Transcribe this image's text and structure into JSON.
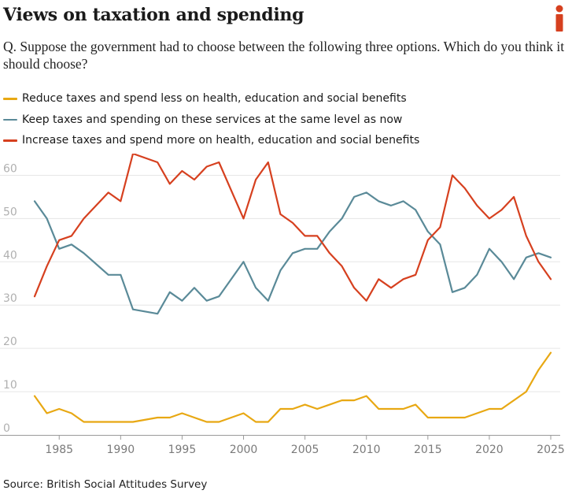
{
  "header": {
    "title": "Views on taxation and spending",
    "subtitle": "Q. Suppose the government had to choose between the following three options. Which do you think it should choose?"
  },
  "footer": {
    "source": "Source: British Social Attitudes Survey"
  },
  "colors": {
    "reduce": "#e8a813",
    "keep": "#5a8a98",
    "increase": "#d6401f",
    "grid": "#e6e6e6",
    "axis": "#9a9a9a",
    "tick_label": "#7a7a7a",
    "brand": "#d6401f"
  },
  "logo_icon": "i-brand-logo",
  "chart_data": {
    "type": "line",
    "title": "Views on taxation and spending",
    "xlabel": "",
    "ylabel": "",
    "xlim": [
      1983,
      2025
    ],
    "ylim": [
      0,
      65
    ],
    "x_ticks": [
      1985,
      1990,
      1995,
      2000,
      2005,
      2010,
      2015,
      2020,
      2025
    ],
    "y_ticks": [
      0,
      10,
      20,
      30,
      40,
      50,
      60
    ],
    "grid": true,
    "legend_position": "top-left",
    "series": [
      {
        "key": "reduce",
        "name": "Reduce taxes and spend less on health, education and social benefits",
        "x": [
          1983,
          1984,
          1985,
          1986,
          1987,
          1989,
          1990,
          1991,
          1993,
          1994,
          1995,
          1996,
          1997,
          1998,
          2000,
          2001,
          2002,
          2003,
          2004,
          2005,
          2006,
          2007,
          2008,
          2009,
          2010,
          2011,
          2012,
          2013,
          2014,
          2015,
          2016,
          2017,
          2018,
          2019,
          2020,
          2021,
          2022,
          2023,
          2024,
          2025
        ],
        "values": [
          9,
          5,
          6,
          5,
          3,
          3,
          3,
          3,
          4,
          4,
          5,
          4,
          3,
          3,
          5,
          3,
          3,
          6,
          6,
          7,
          6,
          7,
          8,
          8,
          9,
          6,
          6,
          6,
          7,
          4,
          4,
          4,
          4,
          5,
          6,
          6,
          8,
          10,
          15,
          19
        ]
      },
      {
        "key": "keep",
        "name": "Keep taxes and spending on these services at the same level as now",
        "x": [
          1983,
          1984,
          1985,
          1986,
          1987,
          1989,
          1990,
          1991,
          1993,
          1994,
          1995,
          1996,
          1997,
          1998,
          2000,
          2001,
          2002,
          2003,
          2004,
          2005,
          2006,
          2007,
          2008,
          2009,
          2010,
          2011,
          2012,
          2013,
          2014,
          2015,
          2016,
          2017,
          2018,
          2019,
          2020,
          2021,
          2022,
          2023,
          2024,
          2025
        ],
        "values": [
          54,
          50,
          43,
          44,
          42,
          37,
          37,
          29,
          28,
          33,
          31,
          34,
          31,
          32,
          40,
          34,
          31,
          38,
          42,
          43,
          43,
          47,
          50,
          55,
          56,
          54,
          53,
          54,
          52,
          47,
          44,
          33,
          34,
          37,
          43,
          40,
          36,
          41,
          42,
          41
        ]
      },
      {
        "key": "increase",
        "name": "Increase taxes and spend more on health, education and social benefits",
        "x": [
          1983,
          1984,
          1985,
          1986,
          1987,
          1989,
          1990,
          1991,
          1993,
          1994,
          1995,
          1996,
          1997,
          1998,
          2000,
          2001,
          2002,
          2003,
          2004,
          2005,
          2006,
          2007,
          2008,
          2009,
          2010,
          2011,
          2012,
          2013,
          2014,
          2015,
          2016,
          2017,
          2018,
          2019,
          2020,
          2021,
          2022,
          2023,
          2024,
          2025
        ],
        "values": [
          32,
          39,
          45,
          46,
          50,
          56,
          54,
          65,
          63,
          58,
          61,
          59,
          62,
          63,
          50,
          59,
          63,
          51,
          49,
          46,
          46,
          42,
          39,
          34,
          31,
          36,
          34,
          36,
          37,
          45,
          48,
          60,
          57,
          53,
          50,
          52,
          55,
          46,
          40,
          36
        ]
      }
    ]
  }
}
